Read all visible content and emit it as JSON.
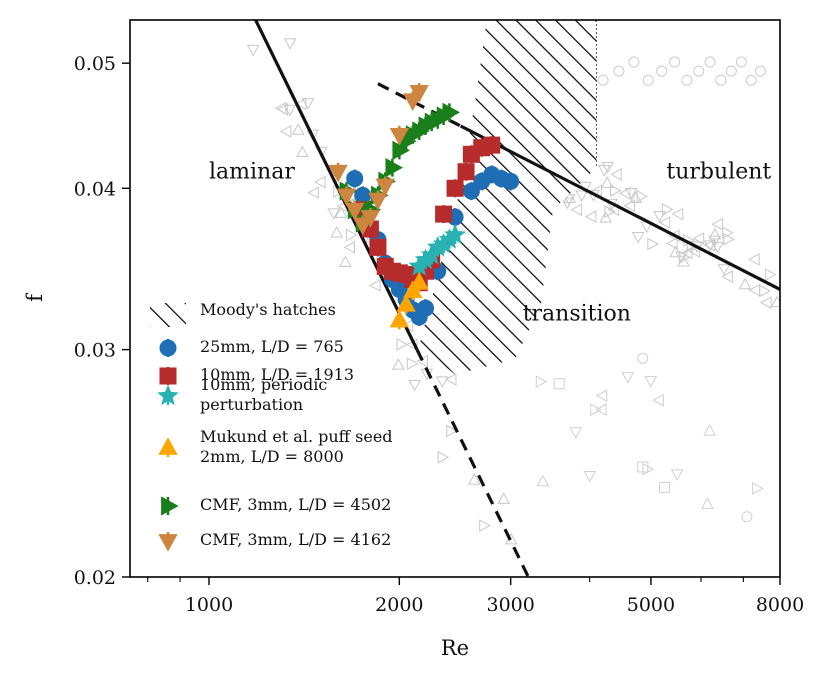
{
  "chart_data": {
    "type": "scatter",
    "xscale": "log",
    "yscale": "log",
    "xlabel": "Re",
    "ylabel": "f",
    "xlim": [
      750,
      8000
    ],
    "ylim": [
      0.02,
      0.054
    ],
    "xticks": [
      1000,
      2000,
      3000,
      5000,
      8000
    ],
    "xtick_labels": [
      "1000",
      "2000",
      "3000",
      "5000",
      "8000"
    ],
    "yticks": [
      0.02,
      0.03,
      0.04,
      0.05
    ],
    "ytick_labels": [
      "0.02",
      "0.03",
      "0.04",
      "0.05"
    ],
    "region_labels": [
      {
        "text": "laminar",
        "x": 1000,
        "y": 0.0412
      },
      {
        "text": "turbulent",
        "x": 5900,
        "y": 0.0412
      },
      {
        "text": "transition",
        "x": 3900,
        "y": 0.032
      }
    ],
    "reference_lines": [
      {
        "name": "laminar f=64/Re",
        "style": "solid",
        "x": [
          1185,
          2133
        ],
        "y": [
          0.054,
          0.03
        ]
      },
      {
        "name": "laminar f=64/Re extension",
        "style": "dashed",
        "x": [
          2133,
          3200
        ],
        "y": [
          0.03,
          0.02
        ]
      },
      {
        "name": "Blasius turbulent",
        "style": "solid",
        "x": [
          2500,
          8000
        ],
        "y": [
          0.0447,
          0.0334
        ]
      },
      {
        "name": "Blasius extension",
        "style": "dashed",
        "x": [
          1850,
          2500
        ],
        "y": [
          0.0482,
          0.0447
        ]
      }
    ],
    "hatch_region": {
      "label": "Moody's hatches",
      "polygon": [
        [
          2650,
          0.0475
        ],
        [
          2750,
          0.054
        ],
        [
          4100,
          0.054
        ],
        [
          4100,
          0.0415
        ],
        [
          3500,
          0.0385
        ],
        [
          3350,
          0.0325
        ],
        [
          3050,
          0.0295
        ],
        [
          2450,
          0.0287
        ],
        [
          2150,
          0.0302
        ],
        [
          2500,
          0.04
        ]
      ]
    },
    "series": [
      {
        "name": "25mm, L/D = 765",
        "color": "#1f6eb5",
        "marker": "circle",
        "x": [
          1700,
          1750,
          1800,
          1850,
          1900,
          1950,
          2000,
          2050,
          2100,
          2150,
          2200,
          2300,
          2450,
          2600,
          2700,
          2800,
          2900,
          3000
        ],
        "y": [
          0.0407,
          0.0395,
          0.0372,
          0.0365,
          0.035,
          0.034,
          0.0334,
          0.0328,
          0.0322,
          0.0318,
          0.0323,
          0.0345,
          0.038,
          0.0398,
          0.0405,
          0.041,
          0.0407,
          0.0405
        ]
      },
      {
        "name": "10mm, L/D = 1913",
        "color": "#b62c2c",
        "marker": "square",
        "x": [
          1750,
          1800,
          1850,
          1900,
          1950,
          2000,
          2050,
          2100,
          2150,
          2200,
          2250,
          2350,
          2450,
          2550,
          2600,
          2700,
          2800
        ],
        "y": [
          0.0385,
          0.0372,
          0.036,
          0.0348,
          0.0345,
          0.0344,
          0.0343,
          0.034,
          0.0338,
          0.0345,
          0.0352,
          0.0382,
          0.04,
          0.0412,
          0.0425,
          0.043,
          0.0432
        ]
      },
      {
        "name": "10mm, periodic perturbation",
        "color": "#29b2b2",
        "marker": "star",
        "x": [
          2150,
          2200,
          2250,
          2300,
          2350,
          2400,
          2450
        ],
        "y": [
          0.0348,
          0.0352,
          0.0355,
          0.036,
          0.0362,
          0.0365,
          0.0368
        ]
      },
      {
        "name": "Mukund et al. puff seed 2mm, L/D = 8000",
        "color": "#ffa500",
        "marker": "triangle-up",
        "x": [
          2000,
          2050,
          2100,
          2150
        ],
        "y": [
          0.0316,
          0.0325,
          0.0333,
          0.0338
        ]
      },
      {
        "name": "CMF, 3mm, L/D = 4502",
        "color": "#1a7f1a",
        "marker": "triangle-right",
        "x": [
          1650,
          1700,
          1750,
          1800,
          1850,
          1900,
          1950,
          2000,
          2050,
          2100,
          2150,
          2200,
          2250,
          2300,
          2350,
          2400
        ],
        "y": [
          0.0398,
          0.0385,
          0.0376,
          0.0385,
          0.0395,
          0.0405,
          0.0415,
          0.0428,
          0.0435,
          0.044,
          0.0443,
          0.0447,
          0.045,
          0.0452,
          0.0455,
          0.0458
        ]
      },
      {
        "name": "CMF, 3mm, L/D = 4162",
        "color": "#cd853f",
        "marker": "triangle-down",
        "x": [
          1600,
          1650,
          1700,
          1750,
          1800,
          1850,
          1900,
          2000,
          2100,
          2150
        ],
        "y": [
          0.0412,
          0.0395,
          0.0385,
          0.0375,
          0.038,
          0.0392,
          0.0402,
          0.044,
          0.0468,
          0.0475
        ]
      }
    ],
    "legend": {
      "placement": "lower-left",
      "entries": [
        "Moody's hatches",
        "25mm, L/D = 765",
        "10mm, L/D = 1913",
        "10mm, periodic perturbation",
        "Mukund et al. puff seed 2mm, L/D = 8000",
        "CMF, 3mm, L/D = 4502",
        "CMF, 3mm, L/D = 4162"
      ],
      "entry_lines": [
        [
          "Moody's hatches"
        ],
        [
          "25mm, L/D = 765"
        ],
        [
          "10mm, L/D = 1913"
        ],
        [
          "10mm, periodic",
          "perturbation"
        ],
        [
          "Mukund et al. puff seed",
          "2mm, L/D = 8000"
        ],
        [
          "CMF, 3mm, L/D = 4502"
        ],
        [
          "CMF, 3mm, L/D = 4162"
        ]
      ]
    },
    "background_markers": "light gray open markers (literature data)"
  }
}
